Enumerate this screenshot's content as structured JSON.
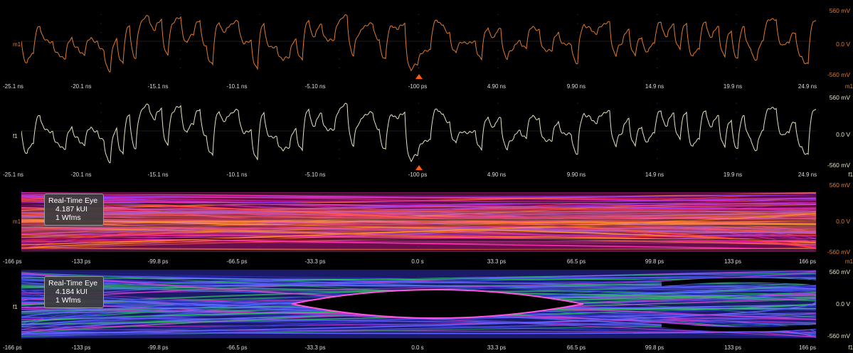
{
  "colors": {
    "orange": "#e07b2a",
    "cream": "#e8e2c0",
    "grid": "#2a2a2a"
  },
  "panels": [
    {
      "id": "m1-waveform",
      "channel_tag": "m1",
      "channel_end_tag": "m1",
      "ylabels": {
        "top": "560 mV",
        "mid": "0.0 V",
        "bottom": "-560 mV"
      },
      "xlabels": [
        "-25.1 ns",
        "-20.1 ns",
        "-15.1 ns",
        "-10.1 ns",
        "-5.10 ns",
        "-100 ps",
        "4.90 ns",
        "9.90 ns",
        "14.9 ns",
        "19.9 ns",
        "24.9 ns"
      ],
      "trace_color": "#e07b2a"
    },
    {
      "id": "f1-waveform",
      "channel_tag": "f1",
      "channel_end_tag": "f1",
      "ylabels": {
        "top": "560 mV",
        "mid": "0.0 V",
        "bottom": "-560 mV"
      },
      "xlabels": [
        "-25.1 ns",
        "-20.1 ns",
        "-15.1 ns",
        "-10.1 ns",
        "-5.10 ns",
        "-100 ps",
        "4.90 ns",
        "9.90 ns",
        "14.9 ns",
        "19.9 ns",
        "24.9 ns"
      ],
      "trace_color": "#e8e2c0"
    },
    {
      "id": "m1-eye",
      "channel_tag": "m1",
      "channel_end_tag": "m1",
      "ylabels": {
        "top": "560 mV",
        "mid": "0.0 V",
        "bottom": "-560 mV"
      },
      "xlabels": [
        "-166 ps",
        "-133 ps",
        "-99.8 ps",
        "-66.5 ps",
        "-33.3 ps",
        "0.0 s",
        "33.3 ps",
        "66.5 ps",
        "99.8 ps",
        "133 ps",
        "166 ps"
      ],
      "badge": {
        "title": "Real-Time Eye",
        "ui": "4.187 kUI",
        "wfms": "1 Wfms"
      }
    },
    {
      "id": "f1-eye",
      "channel_tag": "f1",
      "channel_end_tag": "f1",
      "ylabels": {
        "top": "560 mV",
        "mid": "0.0 V",
        "bottom": "-560 mV"
      },
      "xlabels": [
        "-166 ps",
        "-133 ps",
        "-99.8 ps",
        "-66.5 ps",
        "-33.3 ps",
        "0.0 s",
        "33.3 ps",
        "66.5 ps",
        "99.8 ps",
        "133 ps",
        "166 ps"
      ],
      "badge": {
        "title": "Real-Time Eye",
        "ui": "4.184 kUI",
        "wfms": "1 Wfms"
      }
    }
  ]
}
